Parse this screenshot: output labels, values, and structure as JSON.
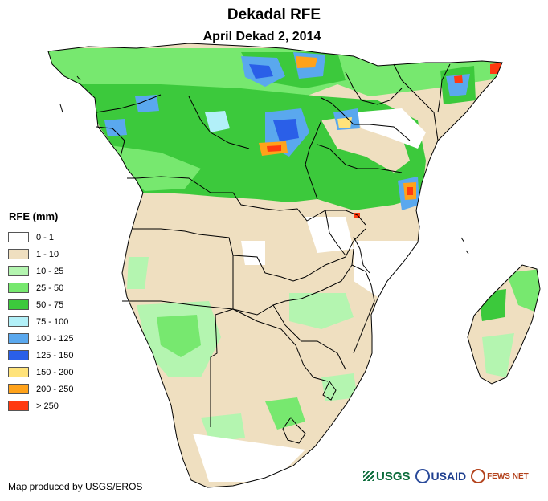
{
  "title": "Dekadal RFE",
  "subtitle": "April Dekad 2, 2014",
  "legend": {
    "title": "RFE (mm)",
    "items": [
      {
        "label": "0 - 1",
        "color": "#ffffff"
      },
      {
        "label": "1 - 10",
        "color": "#efdfc0"
      },
      {
        "label": "10 - 25",
        "color": "#b4f5b0"
      },
      {
        "label": "25 - 50",
        "color": "#77e86f"
      },
      {
        "label": "50 - 75",
        "color": "#3cc93c"
      },
      {
        "label": "75 - 100",
        "color": "#b2f0f8"
      },
      {
        "label": "100 - 125",
        "color": "#5aa8ee"
      },
      {
        "label": "125 - 150",
        "color": "#2a5fe8"
      },
      {
        "label": "150 - 200",
        "color": "#ffe37a"
      },
      {
        "label": "200 - 250",
        "color": "#ffa21a"
      },
      {
        "label": "> 250",
        "color": "#ff3a10"
      }
    ]
  },
  "credit": "Map produced by USGS/EROS",
  "logos": {
    "usgs": "USGS",
    "usaid": "USAID",
    "fews": "FEWS NET"
  }
}
